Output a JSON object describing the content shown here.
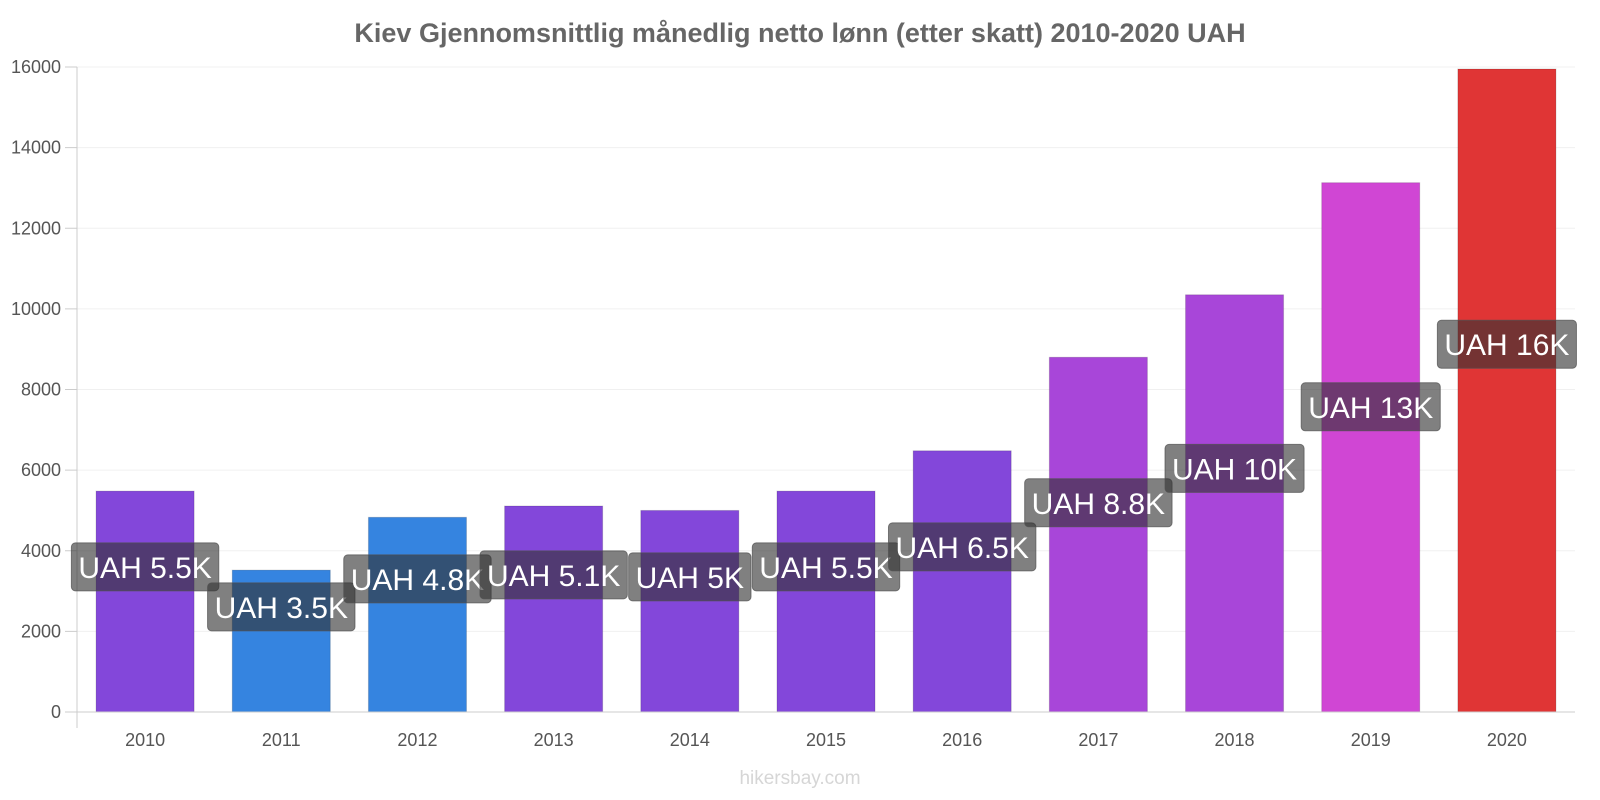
{
  "chart_data": {
    "type": "bar",
    "title": "Kiev Gjennomsnittlig månedlig netto lønn (etter skatt) 2010-2020 UAH",
    "categories": [
      "2010",
      "2011",
      "2012",
      "2013",
      "2014",
      "2015",
      "2016",
      "2017",
      "2018",
      "2019",
      "2020"
    ],
    "values": [
      5480,
      3520,
      4830,
      5110,
      5000,
      5480,
      6480,
      8800,
      10350,
      13130,
      15950
    ],
    "data_labels": [
      "UAH 5.5K",
      "UAH 3.5K",
      "UAH 4.8K",
      "UAH 5.1K",
      "UAH 5K",
      "UAH 5.5K",
      "UAH 6.5K",
      "UAH 8.8K",
      "UAH 10K",
      "UAH 13K",
      "UAH 16K"
    ],
    "colors": [
      "#8347da",
      "#3584e0",
      "#3584e0",
      "#8347da",
      "#8347da",
      "#8347da",
      "#8347da",
      "#a846d9",
      "#a846d9",
      "#d046d4",
      "#e03535"
    ],
    "ylim": [
      0,
      16000
    ],
    "yticks": [
      0,
      2000,
      4000,
      6000,
      8000,
      10000,
      12000,
      14000,
      16000
    ],
    "xlabel": "",
    "ylabel": "",
    "grid": true,
    "legend": "none"
  },
  "footer": {
    "source": "hikersbay.com"
  }
}
